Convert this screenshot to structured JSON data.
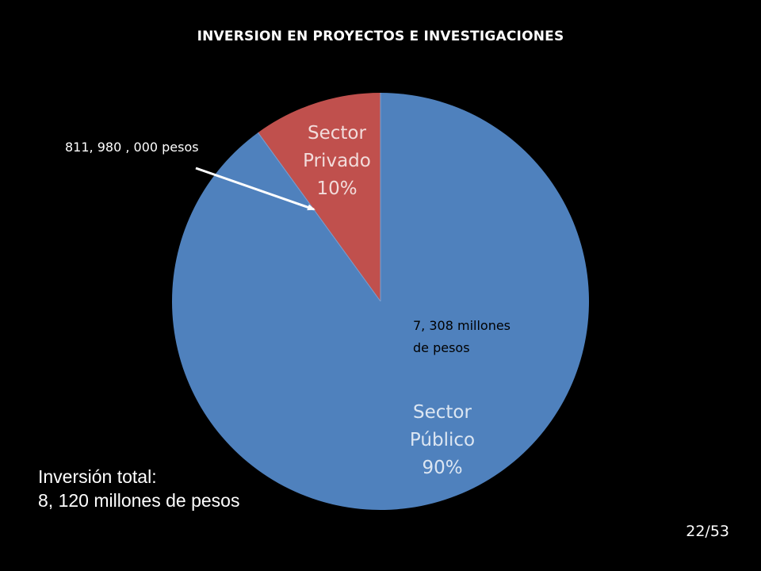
{
  "slide": {
    "title": "INVERSION EN PROYECTOS E INVESTIGACIONES",
    "total_label": "Inversión total:",
    "total_value": "8, 120 millones de pesos",
    "page_number": "22/53"
  },
  "chart_data": {
    "type": "pie",
    "title": "INVERSION EN PROYECTOS E INVESTIGACIONES",
    "slices": [
      {
        "name": "Sector Privado",
        "label_lines": [
          "Sector",
          "Privado",
          "10%"
        ],
        "percent": 10,
        "amount_label": "811, 980 , 000 pesos",
        "color": "#c0504d"
      },
      {
        "name": "Sector Público",
        "label_lines": [
          "Sector",
          "Público",
          "90%"
        ],
        "percent": 90,
        "amount_label_lines": [
          "7, 308 millones",
          "de pesos"
        ],
        "color": "#4f81bd"
      }
    ],
    "start_angle": "12 o'clock",
    "direction": "counterclockwise for Sector Privado",
    "total": "8, 120 millones de pesos"
  }
}
